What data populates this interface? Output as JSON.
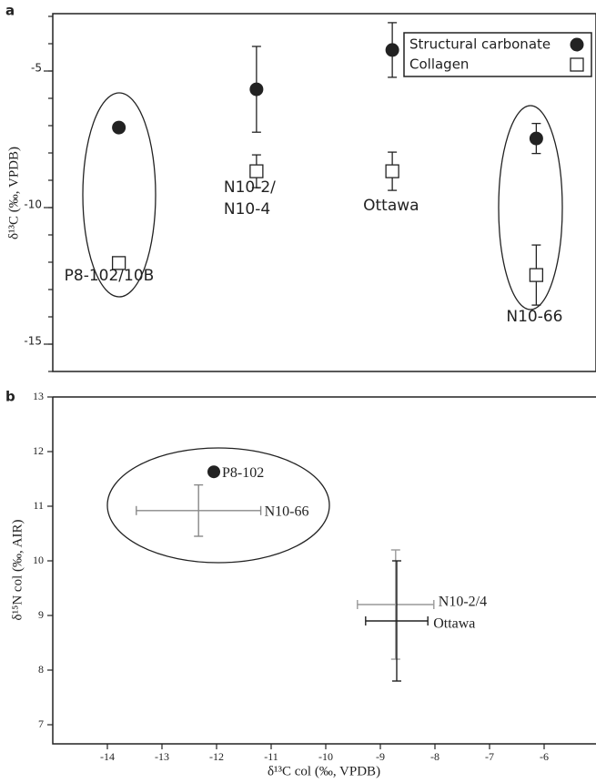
{
  "chart_data": [
    {
      "type": "category-scatter",
      "panel_label": "a",
      "y_label": "δ¹³C (‰, VPDB)",
      "categories": [
        "P8-102/10B",
        "N10-2/\nN10-4",
        "Ottawa",
        "N10-66"
      ],
      "ylim": [
        -16,
        -2.9
      ],
      "yticks": [
        -5,
        -10,
        -15
      ],
      "yminor": [
        -16,
        -15,
        -14,
        -13,
        -12,
        -11,
        -10,
        -9,
        -8,
        -7,
        -6,
        -5,
        -4,
        -3
      ],
      "legend": "upper right",
      "series": [
        {
          "name": "Structural carbonate",
          "marker": "circle",
          "color": "#222",
          "values": [
            -7.07,
            -5.67,
            -4.23,
            -7.47
          ],
          "errors": [
            null,
            1.57,
            1.0,
            0.55
          ]
        },
        {
          "name": "Collagen",
          "marker": "square",
          "color": "#222",
          "values": [
            -12.03,
            -8.67,
            -8.67,
            -12.47
          ],
          "errors": [
            null,
            0.6,
            0.7,
            1.1
          ]
        }
      ]
    },
    {
      "type": "errorbar-scatter",
      "panel_label": "b",
      "x_label": "δ¹³C col (‰, VPDB)",
      "y_label": "δ¹⁵N col (‰, AIR)",
      "xlim": [
        -15,
        -5.05
      ],
      "xticks": [
        -14,
        -13,
        -12,
        -11,
        -10,
        -9,
        -8,
        -7,
        -6
      ],
      "ylim": [
        6.65,
        13
      ],
      "yticks": [
        7,
        8,
        9,
        10,
        11,
        12,
        13
      ],
      "points": [
        {
          "label": "P8-102",
          "x": -12.05,
          "y": 11.63,
          "xerr": null,
          "yerr": null,
          "color": "#222",
          "marker": "circle"
        },
        {
          "label": "N10-66",
          "x": -12.33,
          "y": 10.92,
          "xerr": 1.14,
          "yerr": 0.47,
          "color": "#888",
          "marker": "none"
        },
        {
          "label": "N10-2/4",
          "x": -8.72,
          "y": 9.2,
          "xerr": 0.7,
          "yerr": 1.0,
          "color": "#999",
          "marker": "none"
        },
        {
          "label": "Ottawa",
          "x": -8.7,
          "y": 8.9,
          "xerr": 0.57,
          "yerr": 1.1,
          "color": "#222",
          "marker": "none"
        }
      ]
    }
  ]
}
